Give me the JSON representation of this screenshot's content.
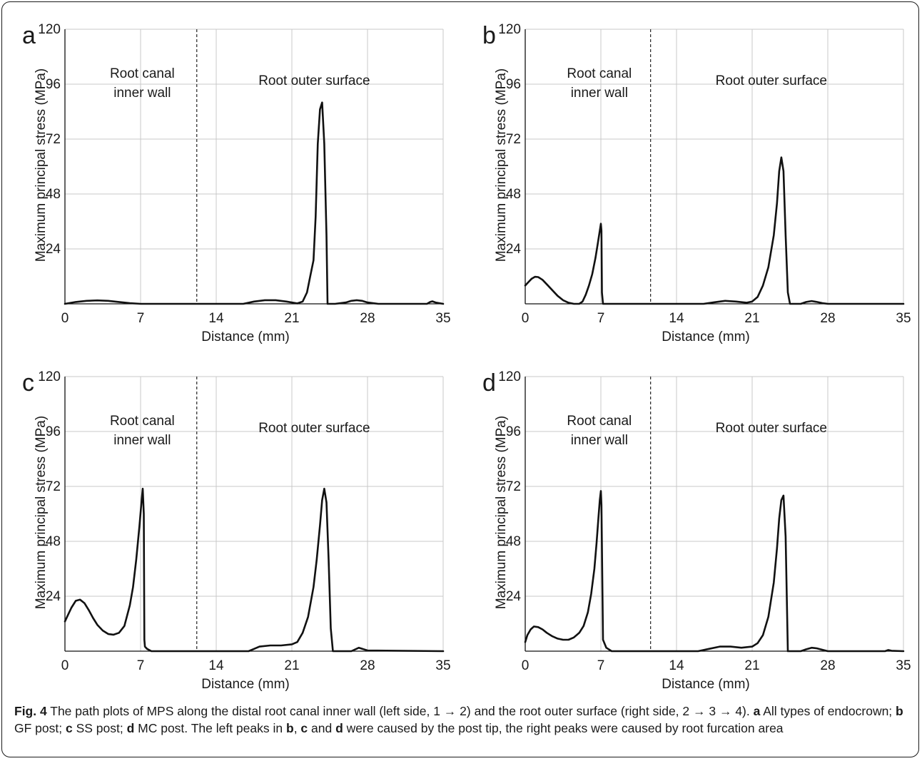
{
  "chart_data": [
    {
      "type": "line",
      "panel_letter": "a",
      "xlabel": "Distance (mm)",
      "ylabel": "Maximum principal stress (MPa)",
      "xlim": [
        0,
        35
      ],
      "ylim": [
        0,
        120
      ],
      "xticks": [
        0,
        7,
        14,
        21,
        28,
        35
      ],
      "yticks": [
        24,
        48,
        72,
        96,
        120
      ],
      "tick_origin_label": "0",
      "divider_x": 12.2,
      "region_labels": [
        "Root canal\ninner wall",
        "Root outer surface"
      ],
      "series": [
        {
          "x": [
            0,
            1,
            2,
            3,
            4,
            5,
            6,
            7,
            12.2,
            16.5,
            17.5,
            18.5,
            19.5,
            20.5,
            21.5,
            22,
            22.4,
            22.7,
            23,
            23.2,
            23.4,
            23.6,
            23.8,
            24,
            24.2,
            24.3,
            24.5,
            25,
            26,
            26.5,
            27,
            27.5,
            28,
            29,
            33.5,
            33.8,
            34,
            34.3,
            35
          ],
          "y": [
            0,
            0.8,
            1.3,
            1.5,
            1.3,
            0.8,
            0.3,
            0,
            0,
            0,
            1,
            1.6,
            1.6,
            1,
            0.2,
            1,
            5,
            12,
            19,
            38,
            70,
            85,
            88,
            70,
            30,
            0,
            0,
            0,
            0.6,
            1.3,
            1.6,
            1.3,
            0.6,
            0,
            0,
            0.8,
            1.1,
            0.6,
            0
          ]
        }
      ]
    },
    {
      "type": "line",
      "panel_letter": "b",
      "xlabel": "Distance (mm)",
      "ylabel": "Maximum principal stress (MPa)",
      "xlim": [
        0,
        35
      ],
      "ylim": [
        0,
        120
      ],
      "xticks": [
        0,
        7,
        14,
        21,
        28,
        35
      ],
      "yticks": [
        24,
        48,
        72,
        96,
        120
      ],
      "tick_origin_label": "0",
      "divider_x": 11.6,
      "region_labels": [
        "Root canal\ninner wall",
        "Root outer surface"
      ],
      "series": [
        {
          "x": [
            0,
            0.3,
            0.6,
            0.9,
            1.2,
            1.6,
            2,
            2.5,
            3,
            3.5,
            4,
            4.5,
            5,
            5.3,
            5.6,
            5.9,
            6.2,
            6.5,
            6.7,
            6.9,
            7,
            7.05,
            7.1,
            7.2,
            11.6,
            16.5,
            17.5,
            18.5,
            19.5,
            20.5,
            21,
            21.5,
            22,
            22.5,
            23,
            23.3,
            23.5,
            23.7,
            23.9,
            24.1,
            24.3,
            24.5,
            25.5,
            26,
            26.5,
            27,
            27.5,
            28,
            35
          ],
          "y": [
            8,
            9.5,
            11,
            11.8,
            11.7,
            10.5,
            8.5,
            6,
            3.5,
            1.6,
            0.5,
            0,
            0,
            1,
            4,
            8,
            13,
            20,
            26,
            32,
            35,
            32,
            5,
            0,
            0,
            0,
            0.7,
            1.3,
            1,
            0.5,
            1,
            3,
            8,
            16,
            30,
            44,
            58,
            64,
            58,
            30,
            5,
            0,
            0,
            0.8,
            1.2,
            0.8,
            0.3,
            0,
            0
          ]
        }
      ]
    },
    {
      "type": "line",
      "panel_letter": "c",
      "xlabel": "Distance (mm)",
      "ylabel": "Maximum principal stress (MPa)",
      "xlim": [
        0,
        35
      ],
      "ylim": [
        0,
        120
      ],
      "xticks": [
        0,
        7,
        14,
        21,
        28,
        35
      ],
      "yticks": [
        24,
        48,
        72,
        96,
        120
      ],
      "tick_origin_label": "0",
      "divider_x": 12.2,
      "region_labels": [
        "Root canal\ninner wall",
        "Root outer surface"
      ],
      "series": [
        {
          "x": [
            0,
            0.3,
            0.6,
            1,
            1.4,
            1.8,
            2.2,
            2.6,
            3,
            3.5,
            4,
            4.5,
            5,
            5.5,
            6,
            6.3,
            6.6,
            6.9,
            7.1,
            7.2,
            7.3,
            7.35,
            7.4,
            7.6,
            8,
            12.2,
            17,
            17.5,
            18,
            19,
            20,
            21,
            21.5,
            22,
            22.5,
            23,
            23.3,
            23.6,
            23.8,
            24,
            24.2,
            24.4,
            24.6,
            24.8,
            25.5,
            26.5,
            27.2,
            28,
            35
          ],
          "y": [
            13,
            16,
            19,
            22,
            22.5,
            21,
            18,
            14.5,
            11.5,
            9,
            7.5,
            7.2,
            8,
            11,
            20,
            28,
            40,
            55,
            66,
            71,
            60,
            5,
            2,
            1,
            0,
            0,
            0,
            1,
            2,
            2.5,
            2.5,
            3,
            4,
            8,
            15,
            28,
            40,
            55,
            66,
            71,
            65,
            40,
            10,
            0,
            0,
            0,
            1.5,
            0.3,
            0
          ]
        }
      ]
    },
    {
      "type": "line",
      "panel_letter": "d",
      "xlabel": "Distance (mm)",
      "ylabel": "Maximum principal stress (MPa)",
      "xlim": [
        0,
        35
      ],
      "ylim": [
        0,
        120
      ],
      "xticks": [
        0,
        7,
        14,
        21,
        28,
        35
      ],
      "yticks": [
        24,
        48,
        72,
        96,
        120
      ],
      "tick_origin_label": "0",
      "divider_x": 11.6,
      "region_labels": [
        "Root canal\ninner wall",
        "Root outer surface"
      ],
      "series": [
        {
          "x": [
            0,
            0.2,
            0.5,
            0.8,
            1.2,
            1.6,
            2,
            2.5,
            3,
            3.5,
            4,
            4.5,
            5,
            5.4,
            5.8,
            6.1,
            6.4,
            6.6,
            6.8,
            6.9,
            7,
            7.05,
            7.2,
            7.5,
            8,
            11.6,
            16,
            17,
            18,
            19,
            20,
            21,
            21.5,
            22,
            22.5,
            23,
            23.3,
            23.5,
            23.7,
            23.9,
            24.1,
            24.3,
            25.5,
            26,
            26.5,
            27,
            28,
            33.3,
            33.6,
            33.9,
            35
          ],
          "y": [
            4,
            7,
            9.5,
            10.8,
            10.5,
            9.5,
            8,
            6.5,
            5.5,
            5,
            5,
            6,
            8,
            11,
            17,
            25,
            36,
            47,
            60,
            66,
            70,
            64,
            5,
            1.5,
            0,
            0,
            0,
            1,
            2,
            2,
            1.5,
            2,
            3.5,
            7,
            15,
            30,
            45,
            58,
            66,
            68,
            50,
            0,
            0,
            0.8,
            1.5,
            1.2,
            0,
            0,
            0.5,
            0.2,
            0
          ]
        }
      ]
    }
  ],
  "caption": {
    "fig_label": "Fig. 4",
    "t1": " The path plots of MPS along the distal root canal inner wall (left side, 1 → 2) and the root outer surface (right side, 2 → 3 → 4). ",
    "b_a": "a",
    "t2": " All types of endocrown; ",
    "b_b": "b",
    "t3": " GF post; ",
    "b_c": "c",
    "t4": " SS post; ",
    "b_d": "d",
    "t5": " MC post. The left peaks in ",
    "b_b2": "b",
    "t6": ", ",
    "b_c2": "c",
    "t7": " and ",
    "b_d2": "d",
    "t8": " were caused by the post tip, the right peaks were caused by root furcation area"
  },
  "colors": {
    "line": "#111111",
    "grid": "#c8c8c8",
    "text": "#1a1a1a"
  }
}
